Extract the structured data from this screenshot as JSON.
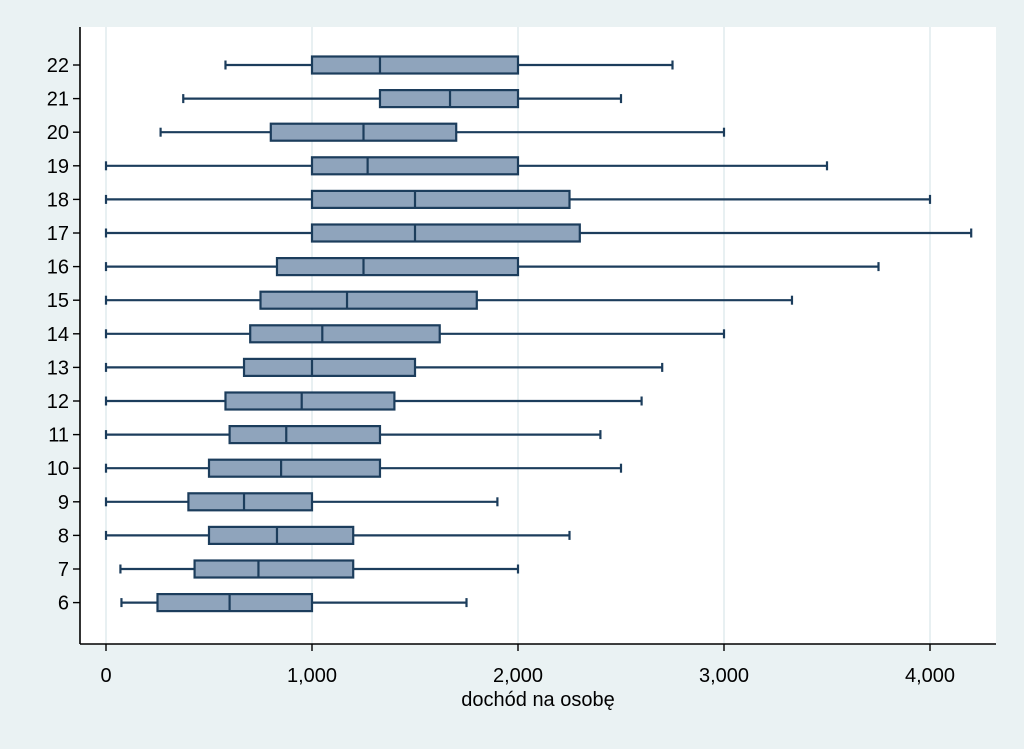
{
  "chart_data": {
    "type": "box",
    "orientation": "horizontal",
    "title": "",
    "xlabel": "dochód na osobę",
    "ylabel": "",
    "xlim": [
      -80,
      4280
    ],
    "xticks": [
      0,
      1000,
      2000,
      3000,
      4000
    ],
    "xtick_labels": [
      "0",
      "1,000",
      "2,000",
      "3,000",
      "4,000"
    ],
    "grid": "vertical",
    "legend": "none",
    "colors": {
      "background": "#eaf2f3",
      "plot_background": "#ffffff",
      "gridline": "#e2ecee",
      "box_fill": "#8fa4bc",
      "box_stroke": "#1c3d5c",
      "axis": "#000000"
    },
    "categories": [
      "22",
      "21",
      "20",
      "19",
      "18",
      "17",
      "16",
      "15",
      "14",
      "13",
      "12",
      "11",
      "10",
      "9",
      "8",
      "7",
      "6"
    ],
    "boxes": [
      {
        "category": "22",
        "whisker_low": 580,
        "q1": 1000,
        "median": 1330,
        "q3": 2000,
        "whisker_high": 2750
      },
      {
        "category": "21",
        "whisker_low": 375,
        "q1": 1330,
        "median": 1670,
        "q3": 2000,
        "whisker_high": 2500
      },
      {
        "category": "20",
        "whisker_low": 265,
        "q1": 800,
        "median": 1250,
        "q3": 1700,
        "whisker_high": 3000
      },
      {
        "category": "19",
        "whisker_low": 0,
        "q1": 1000,
        "median": 1270,
        "q3": 2000,
        "whisker_high": 3500
      },
      {
        "category": "18",
        "whisker_low": 0,
        "q1": 1000,
        "median": 1500,
        "q3": 2250,
        "whisker_high": 4000
      },
      {
        "category": "17",
        "whisker_low": 0,
        "q1": 1000,
        "median": 1500,
        "q3": 2300,
        "whisker_high": 4200
      },
      {
        "category": "16",
        "whisker_low": 0,
        "q1": 830,
        "median": 1250,
        "q3": 2000,
        "whisker_high": 3750
      },
      {
        "category": "15",
        "whisker_low": 0,
        "q1": 750,
        "median": 1170,
        "q3": 1800,
        "whisker_high": 3330
      },
      {
        "category": "14",
        "whisker_low": 0,
        "q1": 700,
        "median": 1050,
        "q3": 1620,
        "whisker_high": 3000
      },
      {
        "category": "13",
        "whisker_low": 0,
        "q1": 670,
        "median": 1000,
        "q3": 1500,
        "whisker_high": 2700
      },
      {
        "category": "12",
        "whisker_low": 0,
        "q1": 580,
        "median": 950,
        "q3": 1400,
        "whisker_high": 2600
      },
      {
        "category": "11",
        "whisker_low": 0,
        "q1": 600,
        "median": 875,
        "q3": 1330,
        "whisker_high": 2400
      },
      {
        "category": "10",
        "whisker_low": 0,
        "q1": 500,
        "median": 850,
        "q3": 1330,
        "whisker_high": 2500
      },
      {
        "category": "9",
        "whisker_low": 0,
        "q1": 400,
        "median": 670,
        "q3": 1000,
        "whisker_high": 1900
      },
      {
        "category": "8",
        "whisker_low": 0,
        "q1": 500,
        "median": 830,
        "q3": 1200,
        "whisker_high": 2250
      },
      {
        "category": "7",
        "whisker_low": 70,
        "q1": 430,
        "median": 740,
        "q3": 1200,
        "whisker_high": 2000
      },
      {
        "category": "6",
        "whisker_low": 75,
        "q1": 250,
        "median": 600,
        "q3": 1000,
        "whisker_high": 1750
      }
    ]
  }
}
